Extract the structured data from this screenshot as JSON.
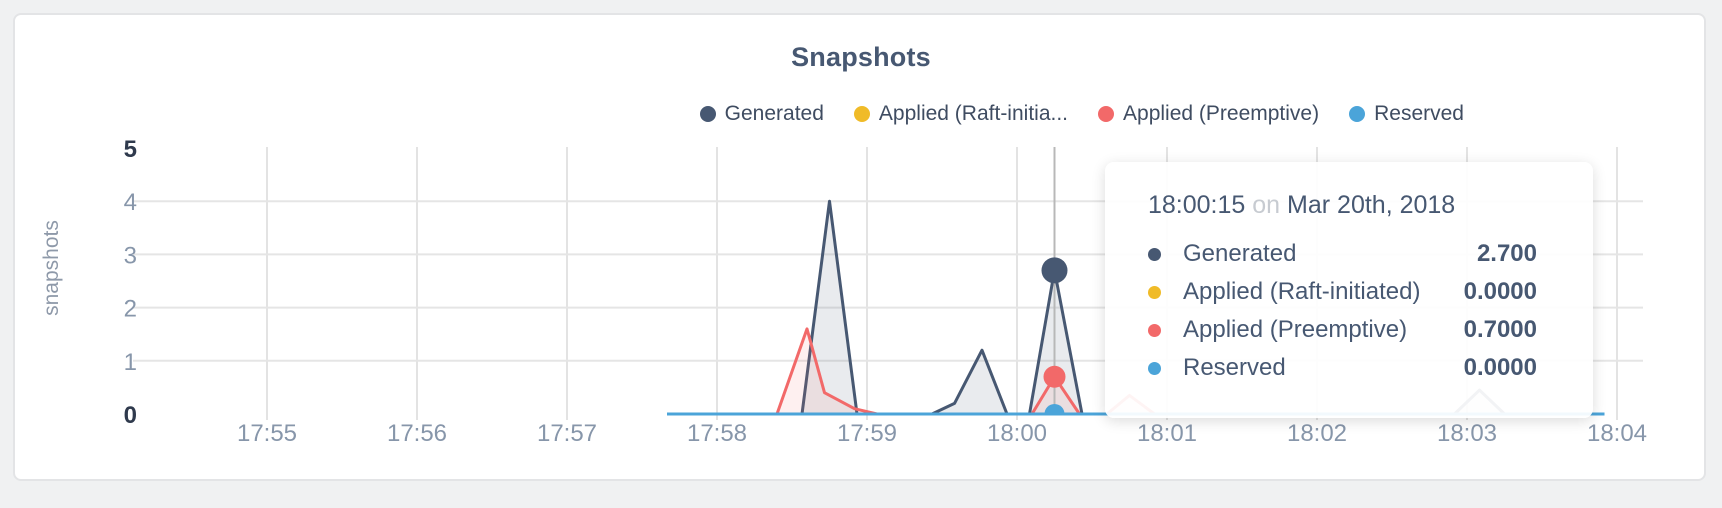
{
  "page": {
    "background_color": "#f0f1f2",
    "card_color": "#ffffff"
  },
  "chart_data": {
    "type": "area",
    "title": "Snapshots",
    "ylabel": "snapshots",
    "xlabel": "",
    "ylim": [
      0,
      5
    ],
    "grid": true,
    "legend_position": "top-right",
    "y_ticks": [
      5,
      4,
      3,
      2,
      1,
      0
    ],
    "x_ticks": [
      "17:55",
      "17:56",
      "17:57",
      "17:58",
      "17:59",
      "18:00",
      "18:01",
      "18:02",
      "18:03",
      "18:04"
    ],
    "series": [
      {
        "id": "generated",
        "name": "Generated",
        "legend_label": "Generated",
        "color": "#475872",
        "fill": "rgba(71,88,114,0.12)",
        "points": [
          [
            "17:57:40",
            0
          ],
          [
            "17:58:34",
            0
          ],
          [
            "17:58:45",
            4.0
          ],
          [
            "17:58:56",
            0
          ],
          [
            "17:59:26",
            0
          ],
          [
            "17:59:35",
            0.2
          ],
          [
            "17:59:46",
            1.2
          ],
          [
            "17:59:56",
            0
          ],
          [
            "18:00:05",
            0
          ],
          [
            "18:00:15",
            2.7
          ],
          [
            "18:00:26",
            0
          ],
          [
            "18:02:55",
            0
          ],
          [
            "18:03:05",
            0.45
          ],
          [
            "18:03:15",
            0
          ],
          [
            "18:03:55",
            0
          ]
        ]
      },
      {
        "id": "raft",
        "name": "Applied (Raft-initiated)",
        "legend_label": "Applied (Raft-initia...",
        "color": "#f0bb28",
        "fill": "none",
        "points": [
          [
            "17:57:40",
            0
          ],
          [
            "18:03:55",
            0
          ]
        ]
      },
      {
        "id": "preemptive",
        "name": "Applied (Preemptive)",
        "legend_label": "Applied (Preemptive)",
        "color": "#f26969",
        "fill": "rgba(242,105,105,0.10)",
        "points": [
          [
            "17:57:40",
            0
          ],
          [
            "17:58:24",
            0
          ],
          [
            "17:58:36",
            1.6
          ],
          [
            "17:58:43",
            0.4
          ],
          [
            "17:58:55",
            0.1
          ],
          [
            "17:59:04",
            0
          ],
          [
            "18:00:06",
            0
          ],
          [
            "18:00:15",
            0.7
          ],
          [
            "18:00:25",
            0
          ],
          [
            "18:00:36",
            0
          ],
          [
            "18:00:45",
            0.35
          ],
          [
            "18:00:55",
            0
          ],
          [
            "18:03:55",
            0
          ]
        ]
      },
      {
        "id": "reserved",
        "name": "Reserved",
        "legend_label": "Reserved",
        "color": "#4ba4d9",
        "fill": "none",
        "points": [
          [
            "17:57:40",
            0
          ],
          [
            "18:03:55",
            0
          ]
        ]
      }
    ],
    "highlight": {
      "time": "18:00:15",
      "conjunction": "on",
      "date": "Mar 20th, 2018",
      "values": {
        "generated": "2.700",
        "raft": "0.0000",
        "preemptive": "0.7000",
        "reserved": "0.0000"
      },
      "numeric_values": {
        "generated": 2.7,
        "raft": 0.0,
        "preemptive": 0.7,
        "reserved": 0.0
      }
    }
  }
}
